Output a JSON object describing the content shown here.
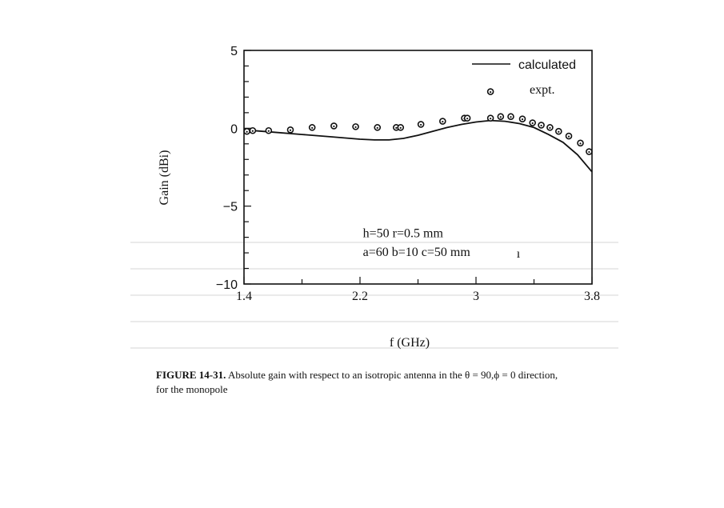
{
  "chart_data": {
    "type": "line",
    "xlabel": "f (GHz)",
    "ylabel": "Gain (dBi)",
    "xlim": [
      1.4,
      3.8
    ],
    "ylim": [
      -10,
      5
    ],
    "x_ticks": [
      1.4,
      2.2,
      3,
      3.8
    ],
    "x_tick_labels": [
      "1.4",
      "2.2",
      "3",
      "3.8"
    ],
    "y_ticks": [
      5,
      0,
      -5,
      -10
    ],
    "y_tick_labels": [
      "5",
      "0",
      "−5",
      "−10"
    ],
    "grid": false,
    "legend_position": "top-right",
    "series": [
      {
        "name": "calculated",
        "style": "line",
        "x": [
          1.4,
          1.6,
          1.8,
          2.0,
          2.2,
          2.3,
          2.4,
          2.5,
          2.6,
          2.7,
          2.8,
          2.9,
          3.0,
          3.1,
          3.2,
          3.3,
          3.4,
          3.5,
          3.6,
          3.7,
          3.8
        ],
        "y": [
          -0.1,
          -0.25,
          -0.4,
          -0.55,
          -0.7,
          -0.75,
          -0.75,
          -0.65,
          -0.45,
          -0.2,
          0.05,
          0.25,
          0.4,
          0.5,
          0.45,
          0.3,
          0.05,
          -0.4,
          -0.9,
          -1.7,
          -2.8
        ]
      },
      {
        "name": "expt.",
        "style": "marker",
        "x": [
          1.42,
          1.46,
          1.57,
          1.72,
          1.87,
          2.02,
          2.17,
          2.32,
          2.45,
          2.48,
          2.62,
          2.77,
          2.92,
          2.94,
          3.1,
          3.17,
          3.24,
          3.32,
          3.39,
          3.45,
          3.51,
          3.57,
          3.64,
          3.72,
          3.78
        ],
        "y": [
          -0.2,
          -0.15,
          -0.15,
          -0.1,
          0.05,
          0.15,
          0.1,
          0.05,
          0.05,
          0.05,
          0.25,
          0.45,
          0.65,
          0.65,
          0.65,
          0.75,
          0.75,
          0.6,
          0.35,
          0.2,
          0.05,
          -0.2,
          -0.5,
          -0.95,
          -1.5
        ]
      }
    ],
    "annotations": [
      {
        "text": "h=50  r=0.5 mm",
        "x": 2.22,
        "y": -7
      },
      {
        "text": "a=60  b=10  c=50 mm",
        "x": 2.22,
        "y": -8.2
      },
      {
        "text": "ı",
        "x": 3.28,
        "y": -8.3
      }
    ],
    "legend_extra_marker": {
      "x": 3.1,
      "y": 2.35
    }
  },
  "caption": {
    "label": "FIGURE 14-31.",
    "text": "Absolute gain with respect to an isotropic antenna in the θ = 90,ϕ = 0 direction,",
    "text2": "for the monopole"
  }
}
